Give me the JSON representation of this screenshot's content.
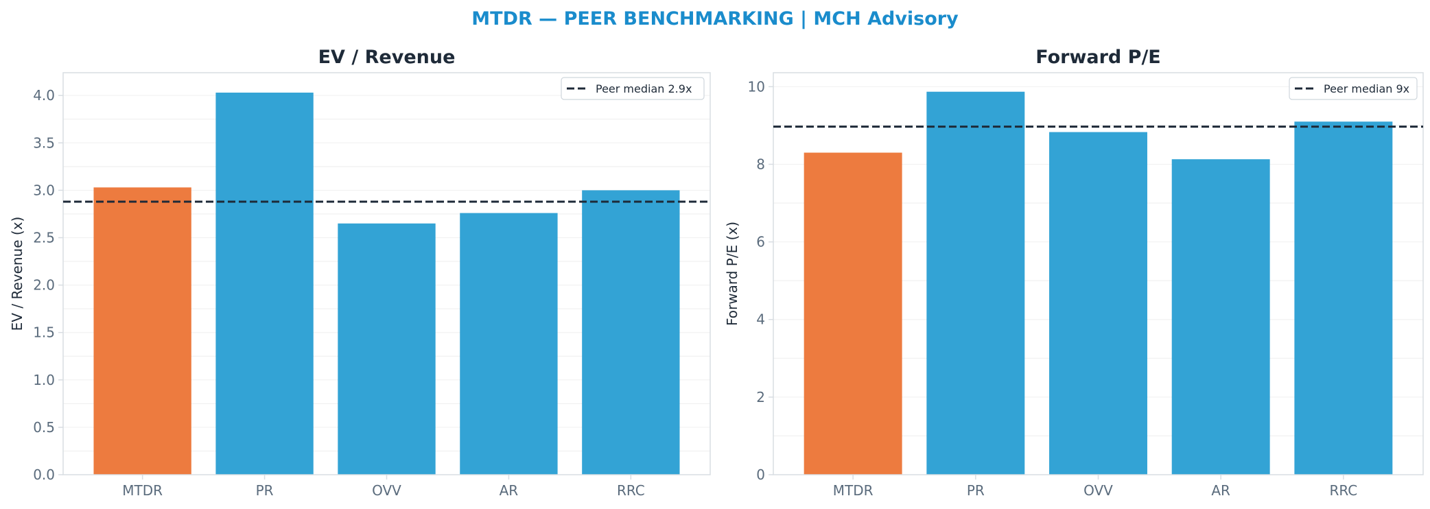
{
  "page": {
    "title": "MTDR — PEER BENCHMARKING | MCH Advisory",
    "title_color": "#1a8ccc"
  },
  "colors": {
    "highlight": "#ed7b3f",
    "peer": "#33a3d5",
    "median_line": "#1e2a38",
    "grid": "#eeeeee",
    "frame": "#d8dde2"
  },
  "chart_data": [
    {
      "type": "bar",
      "title": "EV / Revenue",
      "ylabel": "EV / Revenue (x)",
      "xlabel": "",
      "categories": [
        "MTDR",
        "PR",
        "OVV",
        "AR",
        "RRC"
      ],
      "values": [
        3.03,
        4.03,
        2.65,
        2.76,
        3.0
      ],
      "highlight_category": "MTDR",
      "ylim": [
        0,
        4.24
      ],
      "yticks": [
        0.0,
        0.5,
        1.0,
        1.5,
        2.0,
        2.5,
        3.0,
        3.5,
        4.0
      ],
      "ytick_labels": [
        "0.0",
        "0.5",
        "1.0",
        "1.5",
        "2.0",
        "2.5",
        "3.0",
        "3.5",
        "4.0"
      ],
      "reference_line": {
        "value": 2.88,
        "label": "Peer median 2.9x",
        "style": "dashed"
      },
      "legend_position": "top-right",
      "grid": true
    },
    {
      "type": "bar",
      "title": "Forward P/E",
      "ylabel": "Forward P/E (x)",
      "xlabel": "",
      "categories": [
        "MTDR",
        "PR",
        "OVV",
        "AR",
        "RRC"
      ],
      "values": [
        8.3,
        9.87,
        8.83,
        8.13,
        9.1
      ],
      "highlight_category": "MTDR",
      "ylim": [
        0,
        10.36
      ],
      "yticks": [
        0,
        2,
        4,
        6,
        8,
        10
      ],
      "ytick_labels": [
        "0",
        "2",
        "4",
        "6",
        "8",
        "10"
      ],
      "reference_line": {
        "value": 8.97,
        "label": "Peer median 9x",
        "style": "dashed"
      },
      "legend_position": "top-right",
      "grid": true
    }
  ]
}
